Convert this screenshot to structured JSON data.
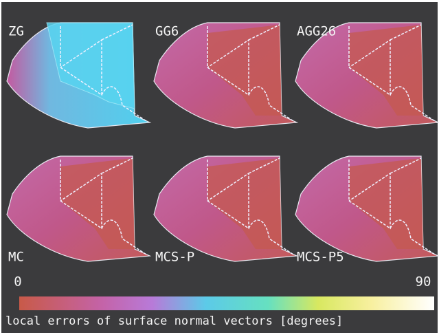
{
  "panels": [
    {
      "label": "ZG"
    },
    {
      "label": "GG6"
    },
    {
      "label": "AGG26"
    },
    {
      "label": "MC"
    },
    {
      "label": "MCS-P"
    },
    {
      "label": "MCS-P5"
    }
  ],
  "colorbar": {
    "min": 0,
    "max": 90,
    "caption": "local errors of surface normal vectors [degrees]"
  }
}
